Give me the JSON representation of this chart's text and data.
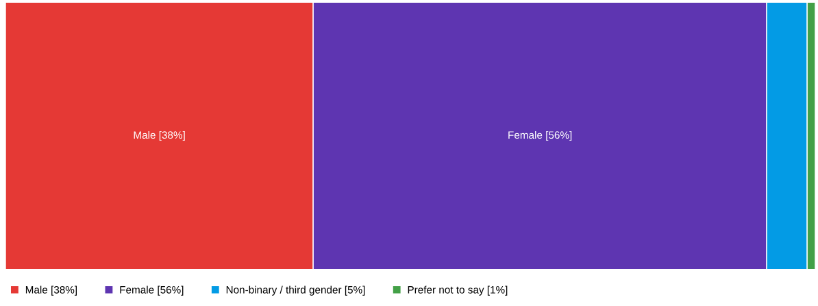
{
  "chart_data": {
    "type": "bar",
    "orientation": "horizontal",
    "stacked": true,
    "categories": [
      null
    ],
    "xlim": [
      0,
      100
    ],
    "tick_labels": false,
    "legend": "bottom",
    "series": [
      {
        "name": "Male [38%]",
        "color": "#e53935",
        "values": [
          38
        ],
        "value_labels": [
          "Male [38%]"
        ]
      },
      {
        "name": "Female [56%]",
        "color": "#5e35b1",
        "values": [
          56
        ],
        "value_labels": [
          "Female [56%]"
        ]
      },
      {
        "name": "Non-binary / third gender [5%]",
        "color": "#039be5",
        "values": [
          5
        ],
        "value_labels": [
          null
        ]
      },
      {
        "name": "Prefer not to say [1%]",
        "color": "#43a047",
        "values": [
          1
        ],
        "value_labels": [
          null
        ]
      }
    ]
  }
}
